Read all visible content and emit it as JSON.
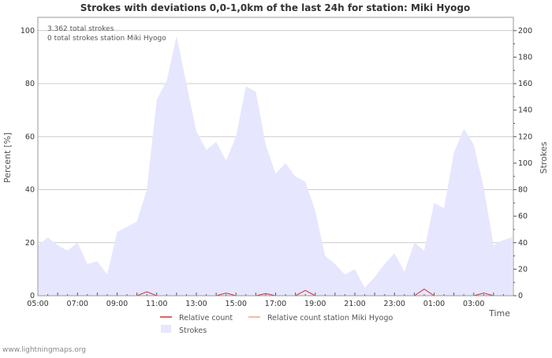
{
  "chart_data": {
    "type": "area",
    "title": "Strokes with deviations 0,0-1,0km of the last 24h for station: Miki Hyogo",
    "annotations": [
      "3.362 total strokes",
      "0 total strokes station Miki Hyogo"
    ],
    "xlabel": "Time",
    "ylabel_left": "Percent   [%]",
    "ylabel_right": "Strokes",
    "x_tick_labels": [
      "05:00",
      "07:00",
      "09:00",
      "11:00",
      "13:00",
      "15:00",
      "17:00",
      "19:00",
      "21:00",
      "23:00",
      "01:00",
      "03:00"
    ],
    "y_left_ticks": [
      0,
      20,
      40,
      60,
      80,
      100
    ],
    "y_left_range": [
      0,
      105
    ],
    "y_right_ticks": [
      0,
      20,
      40,
      60,
      80,
      100,
      120,
      140,
      160,
      180,
      200
    ],
    "y_right_range": [
      0,
      210
    ],
    "x_range_hours": [
      0,
      24
    ],
    "series": [
      {
        "name": "Strokes",
        "axis": "right",
        "color": "#e6e6ff",
        "x": [
          0,
          0.5,
          1,
          1.5,
          2,
          2.5,
          3,
          3.5,
          4,
          4.5,
          5,
          5.5,
          6,
          6.5,
          7,
          7.5,
          8,
          8.5,
          9,
          9.5,
          10,
          10.5,
          11,
          11.5,
          12,
          12.5,
          13,
          13.5,
          14,
          14.5,
          15,
          15.5,
          16,
          16.5,
          17,
          17.5,
          18,
          18.5,
          19,
          19.5,
          20,
          20.5,
          21,
          21.5,
          22,
          22.5,
          23,
          23.5,
          23.95
        ],
        "values": [
          38,
          44,
          38,
          34,
          40,
          24,
          26,
          16,
          48,
          52,
          56,
          80,
          148,
          162,
          196,
          160,
          124,
          110,
          116,
          102,
          120,
          158,
          154,
          114,
          92,
          100,
          90,
          86,
          64,
          30,
          24,
          16,
          20,
          6,
          14,
          24,
          32,
          18,
          40,
          34,
          70,
          66,
          108,
          126,
          114,
          82,
          38,
          42,
          44
        ]
      },
      {
        "name": "Relative count",
        "axis": "left",
        "color": "#cc3333",
        "x": [
          0,
          5,
          5.5,
          6,
          9,
          9.5,
          10,
          11,
          11.5,
          12,
          13,
          13.5,
          14,
          19,
          19.5,
          20,
          22,
          22.5,
          23,
          23.95
        ],
        "values": [
          0,
          0,
          1.5,
          0,
          0,
          1,
          0,
          0,
          0.8,
          0,
          0,
          2,
          0,
          0,
          2.5,
          0,
          0,
          1,
          0,
          0
        ]
      },
      {
        "name": "Relative count station Miki Hyogo",
        "axis": "left",
        "color": "#f0a090",
        "x": [
          0,
          23.95
        ],
        "values": [
          0,
          0
        ]
      }
    ],
    "legend": [
      {
        "label": "Relative count",
        "color": "#cc3333",
        "kind": "line"
      },
      {
        "label": "Relative count station Miki Hyogo",
        "color": "#f0a090",
        "kind": "line"
      },
      {
        "label": "Strokes",
        "color": "#e6e6ff",
        "kind": "area"
      }
    ],
    "watermark": "www.lightningmaps.org"
  }
}
